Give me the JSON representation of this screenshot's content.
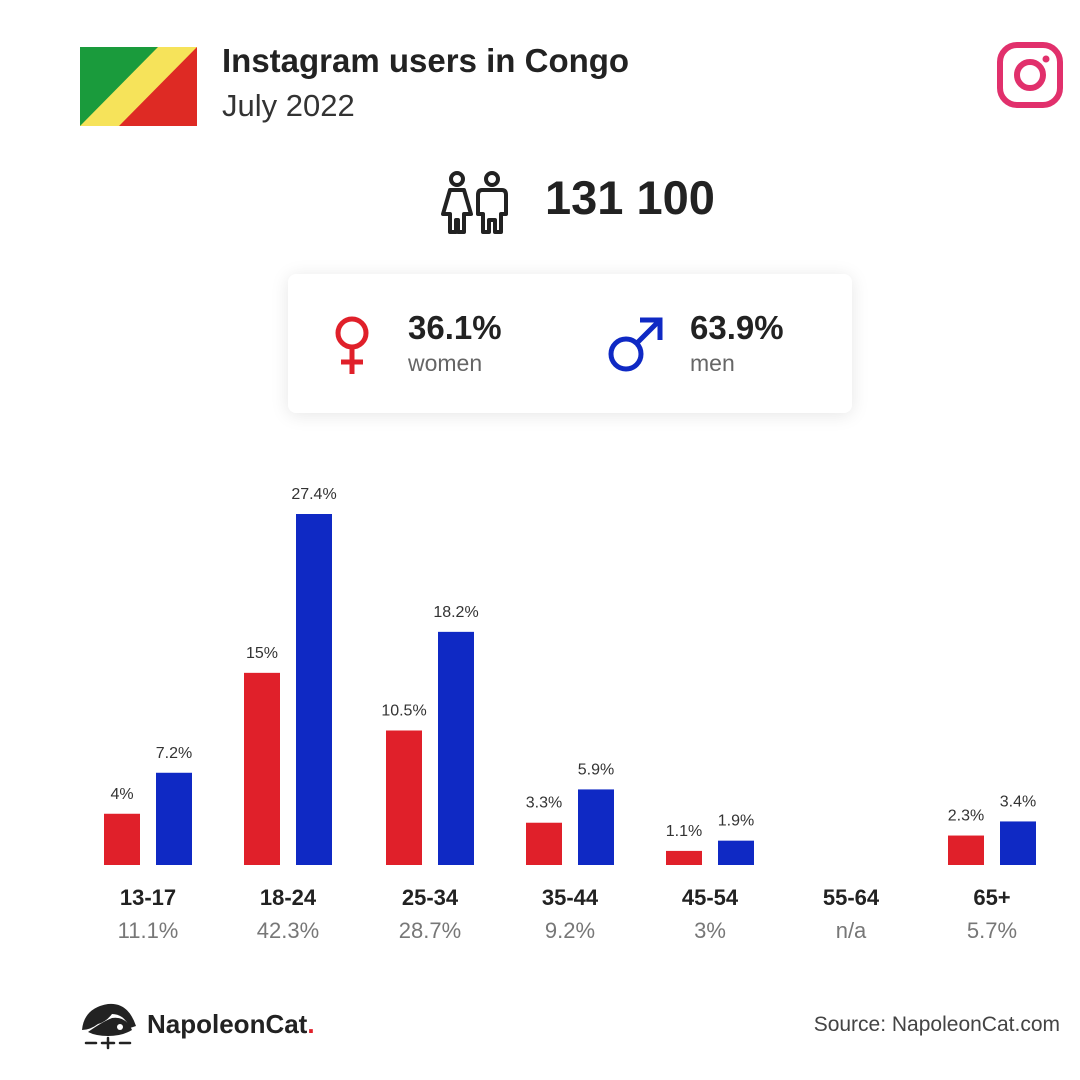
{
  "header": {
    "title": "Instagram users in Congo",
    "subtitle": "July 2022"
  },
  "total_users": "131 100",
  "gender": {
    "women_value": "36.1%",
    "women_label": "women",
    "men_value": "63.9%",
    "men_label": "men"
  },
  "colors": {
    "women": "#e0202a",
    "men": "#0f29c4",
    "instagram": "#e1306c",
    "flag_green": "#1a9b3c",
    "flag_yellow": "#f6e35a",
    "flag_red": "#de2a24"
  },
  "chart_data": {
    "type": "bar",
    "categories": [
      "13-17",
      "18-24",
      "25-34",
      "35-44",
      "45-54",
      "55-64",
      "65+"
    ],
    "category_totals": [
      "11.1%",
      "42.3%",
      "28.7%",
      "9.2%",
      "3%",
      "n/a",
      "5.7%"
    ],
    "series": [
      {
        "values": [
          4,
          15,
          10.5,
          3.3,
          1.1,
          null,
          2.3
        ],
        "labels": [
          "4%",
          "15%",
          "10.5%",
          "3.3%",
          "1.1%",
          "",
          "2.3%"
        ]
      },
      {
        "values": [
          7.2,
          27.4,
          18.2,
          5.9,
          1.9,
          null,
          3.4
        ],
        "labels": [
          "7.2%",
          "27.4%",
          "18.2%",
          "5.9%",
          "1.9%",
          "",
          "3.4%"
        ]
      }
    ],
    "ylim": [
      0,
      27.4
    ],
    "grid": false,
    "legend": "none"
  },
  "footer": {
    "brand_name": "NapoleonCat",
    "brand_dot": ".",
    "source": "Source: NapoleonCat.com"
  },
  "icons": [
    "congo-flag-icon",
    "instagram-icon",
    "users-icon",
    "female-symbol-icon",
    "male-symbol-icon",
    "napoleoncat-logo-icon"
  ]
}
